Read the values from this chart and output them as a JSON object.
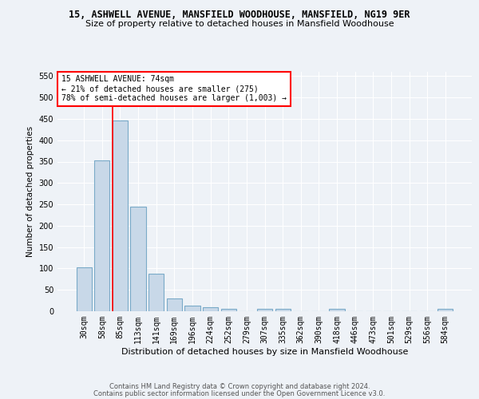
{
  "title1": "15, ASHWELL AVENUE, MANSFIELD WOODHOUSE, MANSFIELD, NG19 9ER",
  "title2": "Size of property relative to detached houses in Mansfield Woodhouse",
  "xlabel": "Distribution of detached houses by size in Mansfield Woodhouse",
  "ylabel": "Number of detached properties",
  "footer1": "Contains HM Land Registry data © Crown copyright and database right 2024.",
  "footer2": "Contains public sector information licensed under the Open Government Licence v3.0.",
  "categories": [
    "30sqm",
    "58sqm",
    "85sqm",
    "113sqm",
    "141sqm",
    "169sqm",
    "196sqm",
    "224sqm",
    "252sqm",
    "279sqm",
    "307sqm",
    "335sqm",
    "362sqm",
    "390sqm",
    "418sqm",
    "446sqm",
    "473sqm",
    "501sqm",
    "529sqm",
    "556sqm",
    "584sqm"
  ],
  "values": [
    103,
    353,
    447,
    245,
    88,
    30,
    13,
    9,
    5,
    0,
    5,
    5,
    0,
    0,
    6,
    0,
    0,
    0,
    0,
    0,
    5
  ],
  "bar_color": "#c8d8e8",
  "bar_edge_color": "#7aaac8",
  "bar_linewidth": 0.8,
  "vline_color": "red",
  "vline_linewidth": 1.2,
  "annotation_text": "15 ASHWELL AVENUE: 74sqm\n← 21% of detached houses are smaller (275)\n78% of semi-detached houses are larger (1,003) →",
  "annotation_box_color": "white",
  "annotation_box_edge": "red",
  "ylim": [
    0,
    560
  ],
  "yticks": [
    0,
    50,
    100,
    150,
    200,
    250,
    300,
    350,
    400,
    450,
    500,
    550
  ],
  "bg_color": "#eef2f7",
  "plot_bg_color": "#eef2f7",
  "grid_color": "white",
  "title1_fontsize": 8.5,
  "title2_fontsize": 8,
  "xlabel_fontsize": 8,
  "ylabel_fontsize": 7.5,
  "tick_fontsize": 7,
  "footer_fontsize": 6,
  "annotation_fontsize": 7
}
